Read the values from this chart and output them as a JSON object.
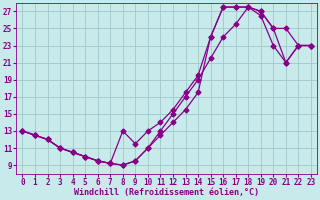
{
  "background_color": "#c8eaea",
  "grid_color": "#a0c8c8",
  "line_color": "#880088",
  "marker": "D",
  "markersize": 2.5,
  "linewidth": 0.9,
  "xlim": [
    -0.5,
    23.5
  ],
  "ylim": [
    8,
    28
  ],
  "xticks": [
    0,
    1,
    2,
    3,
    4,
    5,
    6,
    7,
    8,
    9,
    10,
    11,
    12,
    13,
    14,
    15,
    16,
    17,
    18,
    19,
    20,
    21,
    22,
    23
  ],
  "yticks": [
    9,
    11,
    13,
    15,
    17,
    19,
    21,
    23,
    25,
    27
  ],
  "xlabel": "Windchill (Refroidissement éolien,°C)",
  "xlabel_fontsize": 6,
  "tick_fontsize": 5.5,
  "line1_x": [
    0,
    1,
    2,
    3,
    4,
    5,
    6,
    7,
    8,
    9,
    10,
    11,
    12,
    13,
    14,
    15,
    16,
    17,
    18,
    19,
    20,
    21,
    22,
    23
  ],
  "line1_y": [
    13,
    12.5,
    12,
    11,
    10.5,
    10,
    9.5,
    9.2,
    9.0,
    9.5,
    11,
    12.5,
    14,
    15.5,
    17.5,
    24.0,
    27.5,
    27.5,
    27.5,
    27.0,
    25.0,
    25.0,
    23.0,
    23.0
  ],
  "line2_x": [
    0,
    1,
    2,
    3,
    4,
    5,
    6,
    7,
    8,
    9,
    10,
    11,
    12,
    13,
    14,
    15,
    16,
    17,
    18,
    19,
    20,
    21,
    22,
    23
  ],
  "line2_y": [
    13,
    12.5,
    12,
    11,
    10.5,
    10,
    9.5,
    9.2,
    13.0,
    11.5,
    13,
    14.0,
    15.5,
    17.5,
    19.5,
    24.0,
    27.5,
    27.5,
    27.5,
    27.0,
    25.0,
    21.0,
    23.0,
    23.0
  ],
  "line3_x": [
    0,
    1,
    2,
    3,
    4,
    5,
    6,
    7,
    8,
    9,
    10,
    11,
    12,
    13,
    14,
    15,
    16,
    17,
    18,
    19,
    20,
    21,
    22,
    23
  ],
  "line3_y": [
    13,
    12.5,
    12,
    11,
    10.5,
    10,
    9.5,
    9.2,
    9.0,
    9.5,
    11,
    13.0,
    15,
    17.0,
    19.0,
    21.5,
    24.0,
    25.5,
    27.5,
    26.5,
    23.0,
    21.0,
    23.0,
    23.0
  ]
}
